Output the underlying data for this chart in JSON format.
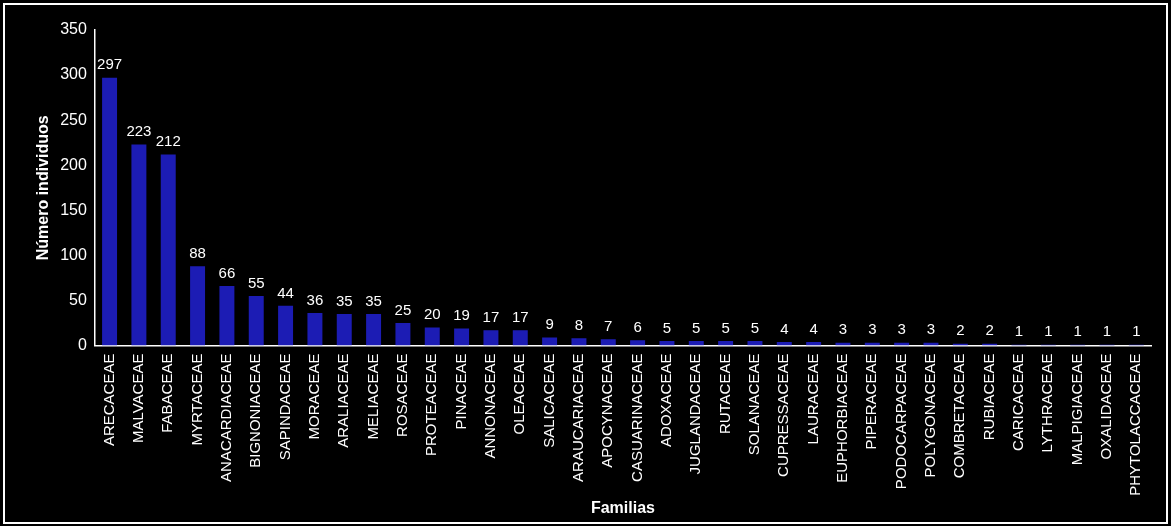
{
  "chart_data": {
    "type": "bar",
    "xlabel": "Familias",
    "ylabel": "Número individuos",
    "categories": [
      "ARECACEAE",
      "MALVACEAE",
      "FABACEAE",
      "MYRTACEAE",
      "ANACARDIACEAE",
      "BIGNONIACEAE",
      "SAPINDACEAE",
      "MORACEAE",
      "ARALIACEAE",
      "MELIACEAE",
      "ROSACEAE",
      "PROTEACEAE",
      "PINACEAE",
      "ANNONACEAE",
      "OLEACEAE",
      "SALICACEAE",
      "ARAUCARIACEAE",
      "APOCYNACEAE",
      "CASUARINACEAE",
      "ADOXACEAE",
      "JUGLANDACEAE",
      "RUTACEAE",
      "SOLANACEAE",
      "CUPRESSACEAE",
      "LAURACEAE",
      "EUPHORBIACEAE",
      "PIPERACEAE",
      "PODOCARPACEAE",
      "POLYGONACEAE",
      "COMBRETACEAE",
      "RUBIACEAE",
      "CARICACEAE",
      "LYTHRACEAE",
      "MALPIGIACEAE",
      "OXALIDACEAE",
      "PHYTOLACCACEAE"
    ],
    "values": [
      297,
      223,
      212,
      88,
      66,
      55,
      44,
      36,
      35,
      35,
      25,
      20,
      19,
      17,
      17,
      9,
      8,
      7,
      6,
      5,
      5,
      5,
      5,
      4,
      4,
      3,
      3,
      3,
      3,
      2,
      2,
      1,
      1,
      1,
      1,
      1
    ],
    "color": "#1c1cb4",
    "ylim": [
      0,
      350
    ],
    "yticks": [
      0,
      50,
      100,
      150,
      200,
      250,
      300,
      350
    ],
    "data_labels": true
  }
}
